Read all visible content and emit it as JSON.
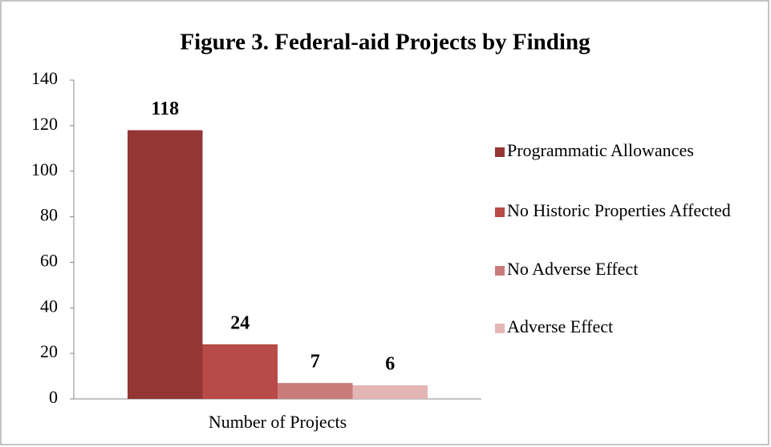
{
  "chart_data": {
    "type": "bar",
    "title": "Figure 3. Federal-aid Projects by Finding",
    "categories": [
      "Number of Projects"
    ],
    "series": [
      {
        "name": "Programmatic Allowances",
        "color": "#943634",
        "values": [
          118
        ]
      },
      {
        "name": "No Historic Properties Affected",
        "color": "#b84a47",
        "values": [
          24
        ]
      },
      {
        "name": "No Adverse Effect",
        "color": "#c97b7a",
        "values": [
          7
        ]
      },
      {
        "name": "Adverse Effect",
        "color": "#e3b6b5",
        "values": [
          6
        ]
      }
    ],
    "ylim": [
      0,
      140
    ],
    "yticks": [
      0,
      20,
      40,
      60,
      80,
      100,
      120,
      140
    ],
    "grid": false,
    "legend": "right"
  }
}
